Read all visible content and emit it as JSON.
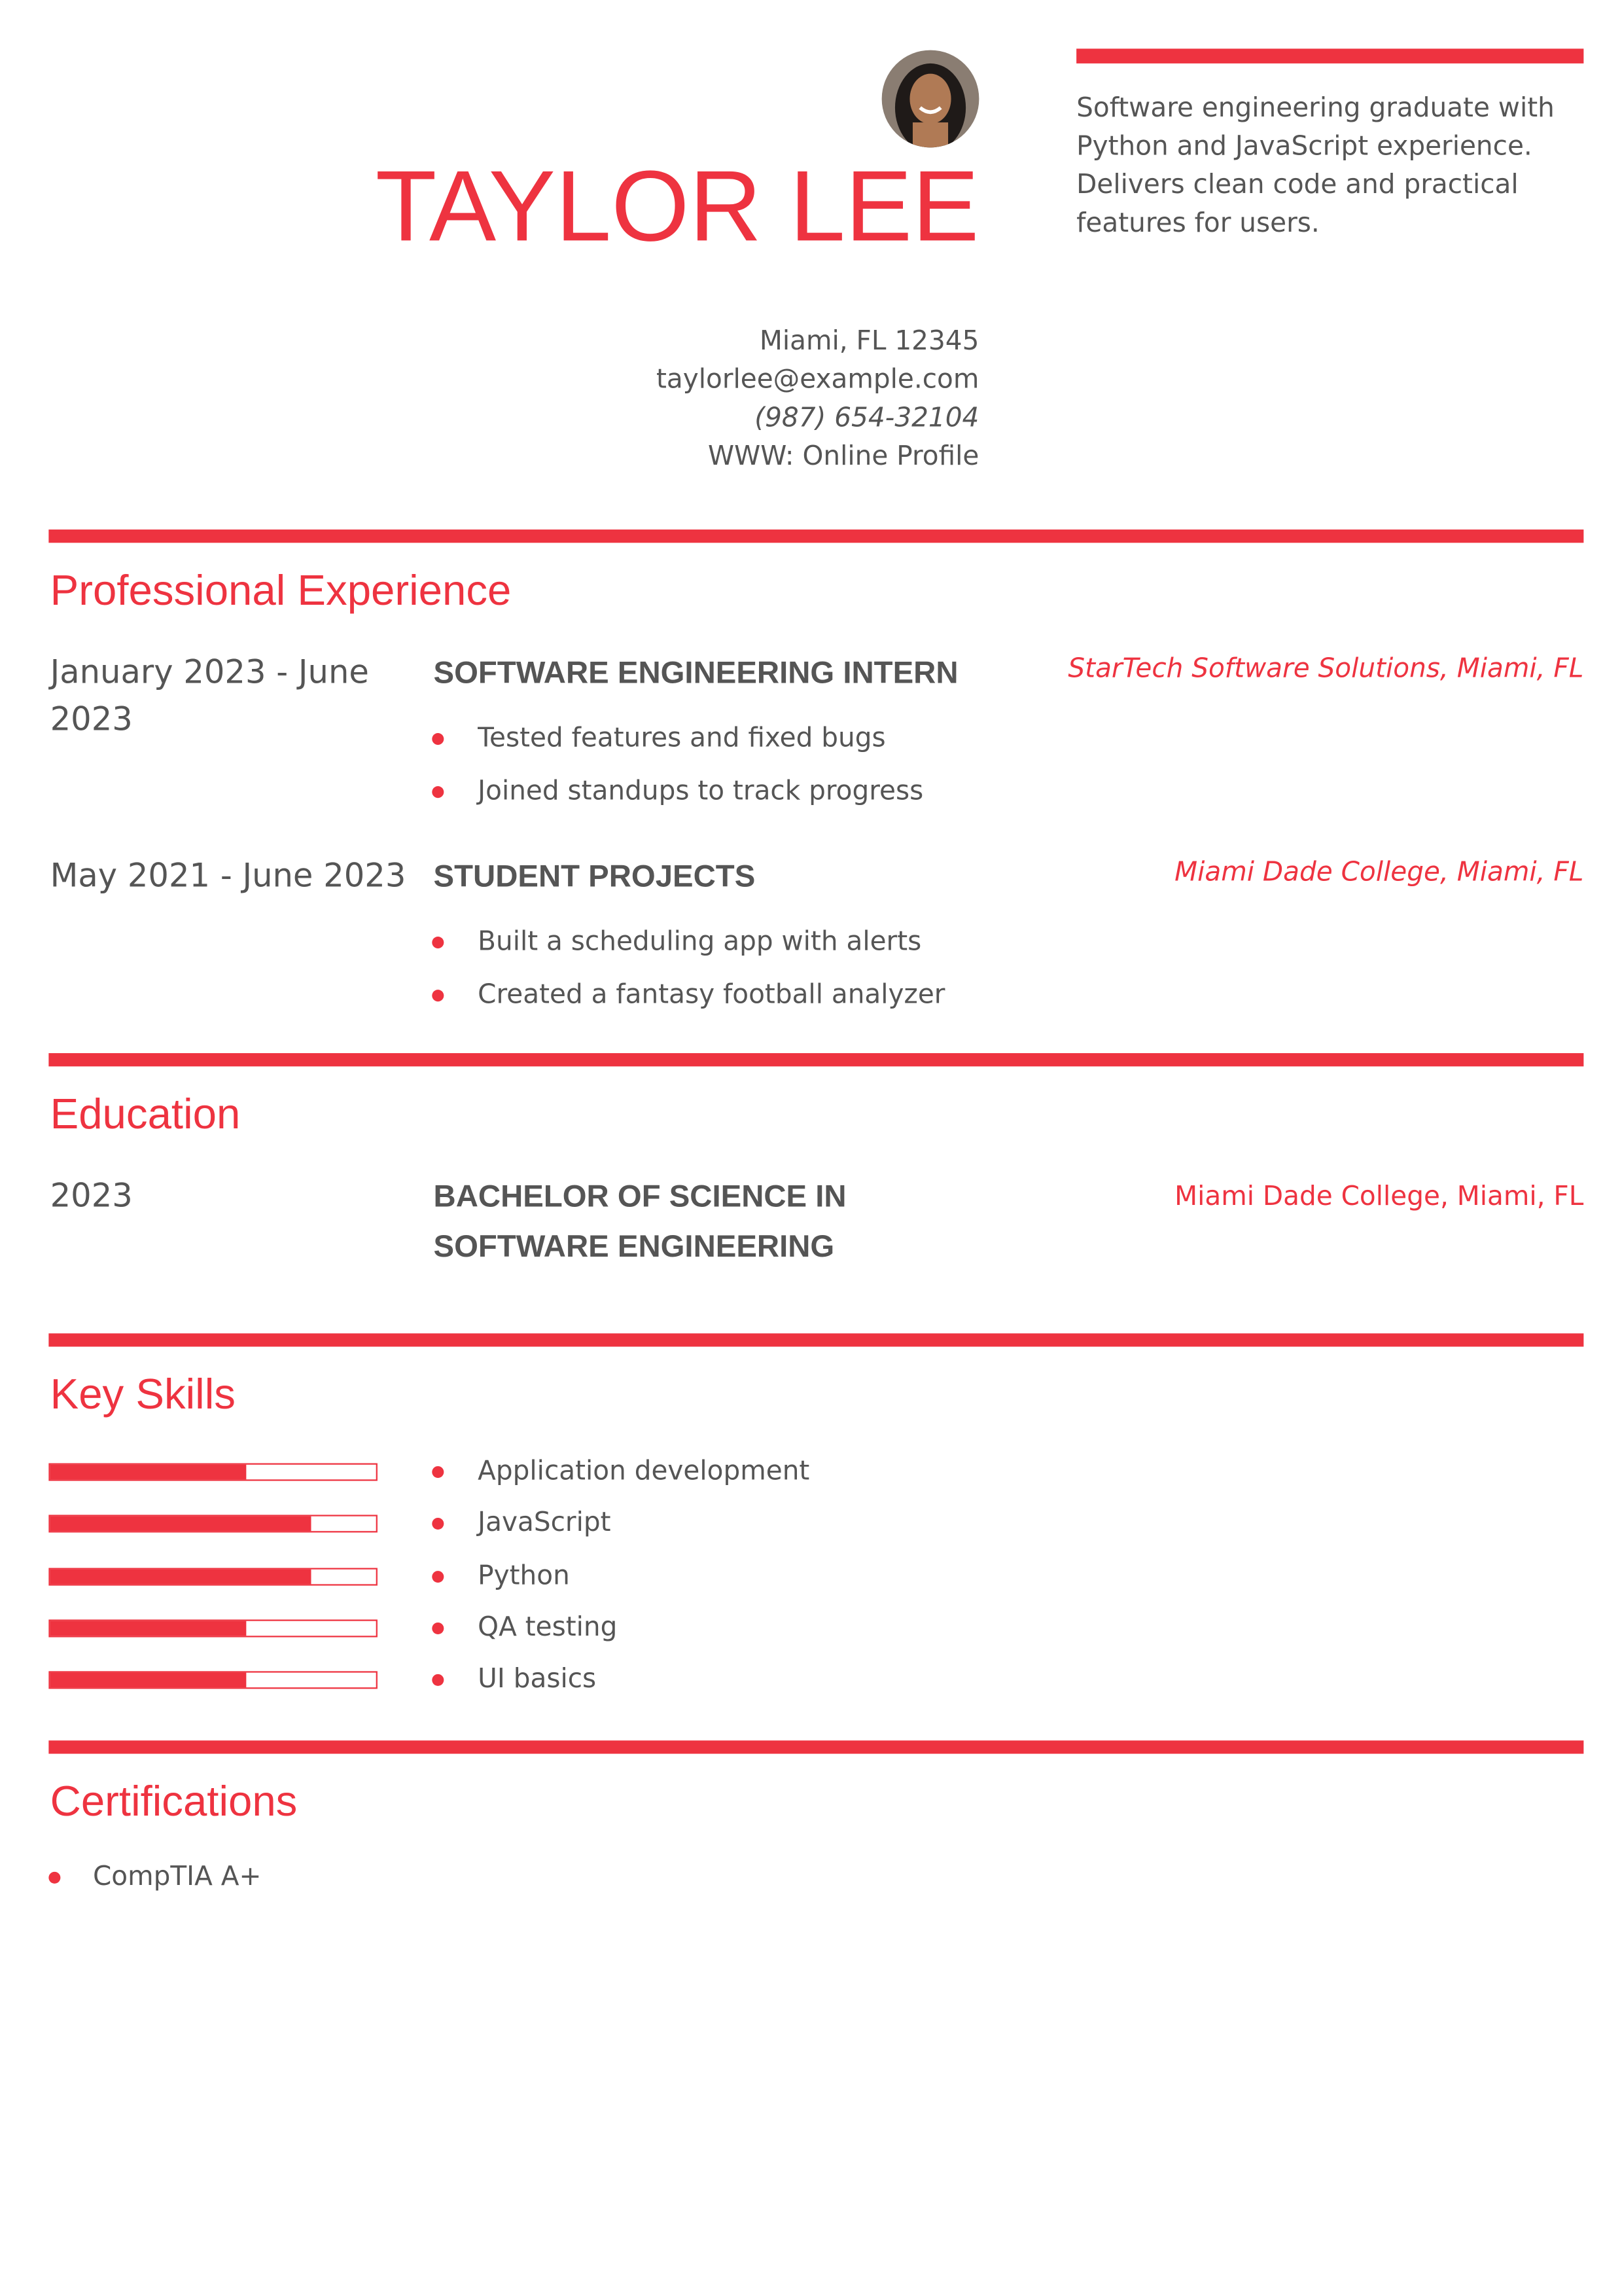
{
  "header": {
    "name": "TAYLOR LEE",
    "summary": "Software engineering graduate with Python and JavaScript experience. Delivers clean code and practical features for users.",
    "location": "Miami, FL 12345",
    "email": "taylorlee@example.com",
    "phone": "(987) 654-32104",
    "website": "WWW: Online Profile"
  },
  "experience": {
    "title": "Professional Experience",
    "items": [
      {
        "dates": "January 2023 - June 2023",
        "role": "SOFTWARE ENGINEERING INTERN",
        "company": "StarTech Software Solutions, Miami, FL",
        "bullets": [
          "Tested features and fixed bugs",
          "Joined standups to track progress"
        ]
      },
      {
        "dates": "May 2021 - June 2023",
        "role": "STUDENT PROJECTS",
        "company": "Miami Dade College, Miami, FL",
        "bullets": [
          "Built a scheduling app with alerts",
          "Created a fantasy football analyzer"
        ]
      }
    ]
  },
  "education": {
    "title": "Education",
    "items": [
      {
        "year": "2023",
        "degree": "BACHELOR OF SCIENCE IN SOFTWARE ENGINEERING",
        "school": "Miami Dade College, Miami, FL"
      }
    ]
  },
  "skills": {
    "title": "Key Skills",
    "items": [
      {
        "name": "Application development",
        "level": 0.6
      },
      {
        "name": "JavaScript",
        "level": 0.8
      },
      {
        "name": "Python",
        "level": 0.8
      },
      {
        "name": "QA testing",
        "level": 0.6
      },
      {
        "name": "UI basics",
        "level": 0.6
      }
    ]
  },
  "certifications": {
    "title": "Certifications",
    "items": [
      "CompTIA A+"
    ]
  }
}
